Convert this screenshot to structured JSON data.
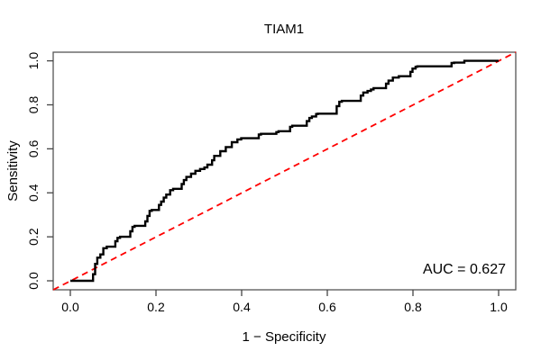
{
  "chart_data": {
    "type": "line",
    "subtype": "roc-step-curve",
    "title": "TIAM1",
    "xlabel": "1 − Specificity",
    "ylabel": "Sensitivity",
    "xlim": [
      0,
      1
    ],
    "ylim": [
      0,
      1
    ],
    "grid": false,
    "legend": null,
    "x_tick_values": [
      0.0,
      0.2,
      0.4,
      0.6,
      0.8,
      1.0
    ],
    "x_tick_labels": [
      "0.0",
      "0.2",
      "0.4",
      "0.6",
      "0.8",
      "1.0"
    ],
    "y_tick_values": [
      0.0,
      0.2,
      0.4,
      0.6,
      0.8,
      1.0
    ],
    "y_tick_labels": [
      "0.0",
      "0.2",
      "0.4",
      "0.6",
      "0.8",
      "1.0"
    ],
    "annotation": "AUC = 0.627",
    "auc_value": 0.627,
    "colors": {
      "roc_curve": "#000000",
      "chance_diagonal": "#ff0000",
      "box": "#555555"
    },
    "series": [
      {
        "name": "ROC curve",
        "style": "step",
        "color": "#000000",
        "points": [
          [
            0.0,
            0.0
          ],
          [
            0.053,
            0.0
          ],
          [
            0.058,
            0.03
          ],
          [
            0.063,
            0.077
          ],
          [
            0.07,
            0.105
          ],
          [
            0.077,
            0.12
          ],
          [
            0.085,
            0.148
          ],
          [
            0.105,
            0.155
          ],
          [
            0.11,
            0.18
          ],
          [
            0.116,
            0.195
          ],
          [
            0.14,
            0.2
          ],
          [
            0.145,
            0.225
          ],
          [
            0.15,
            0.245
          ],
          [
            0.175,
            0.25
          ],
          [
            0.18,
            0.27
          ],
          [
            0.185,
            0.295
          ],
          [
            0.19,
            0.318
          ],
          [
            0.207,
            0.322
          ],
          [
            0.212,
            0.345
          ],
          [
            0.218,
            0.36
          ],
          [
            0.224,
            0.378
          ],
          [
            0.233,
            0.392
          ],
          [
            0.24,
            0.412
          ],
          [
            0.26,
            0.418
          ],
          [
            0.265,
            0.44
          ],
          [
            0.271,
            0.458
          ],
          [
            0.282,
            0.472
          ],
          [
            0.292,
            0.487
          ],
          [
            0.303,
            0.5
          ],
          [
            0.313,
            0.508
          ],
          [
            0.32,
            0.515
          ],
          [
            0.331,
            0.528
          ],
          [
            0.336,
            0.548
          ],
          [
            0.35,
            0.568
          ],
          [
            0.363,
            0.589
          ],
          [
            0.377,
            0.608
          ],
          [
            0.39,
            0.63
          ],
          [
            0.399,
            0.643
          ],
          [
            0.44,
            0.648
          ],
          [
            0.445,
            0.665
          ],
          [
            0.481,
            0.668
          ],
          [
            0.486,
            0.676
          ],
          [
            0.513,
            0.68
          ],
          [
            0.518,
            0.7
          ],
          [
            0.552,
            0.705
          ],
          [
            0.558,
            0.726
          ],
          [
            0.564,
            0.74
          ],
          [
            0.574,
            0.747
          ],
          [
            0.578,
            0.758
          ],
          [
            0.622,
            0.76
          ],
          [
            0.628,
            0.794
          ],
          [
            0.634,
            0.814
          ],
          [
            0.678,
            0.818
          ],
          [
            0.684,
            0.842
          ],
          [
            0.694,
            0.856
          ],
          [
            0.702,
            0.863
          ],
          [
            0.708,
            0.87
          ],
          [
            0.737,
            0.876
          ],
          [
            0.743,
            0.896
          ],
          [
            0.753,
            0.91
          ],
          [
            0.767,
            0.924
          ],
          [
            0.794,
            0.93
          ],
          [
            0.799,
            0.95
          ],
          [
            0.806,
            0.965
          ],
          [
            0.81,
            0.973
          ],
          [
            0.89,
            0.975
          ],
          [
            0.896,
            0.99
          ],
          [
            0.92,
            0.992
          ],
          [
            0.925,
            1.0
          ],
          [
            1.0,
            1.0
          ]
        ]
      },
      {
        "name": "chance diagonal",
        "style": "dashed",
        "color": "#ff0000",
        "points": [
          [
            0,
            0
          ],
          [
            1,
            1
          ]
        ]
      }
    ]
  }
}
